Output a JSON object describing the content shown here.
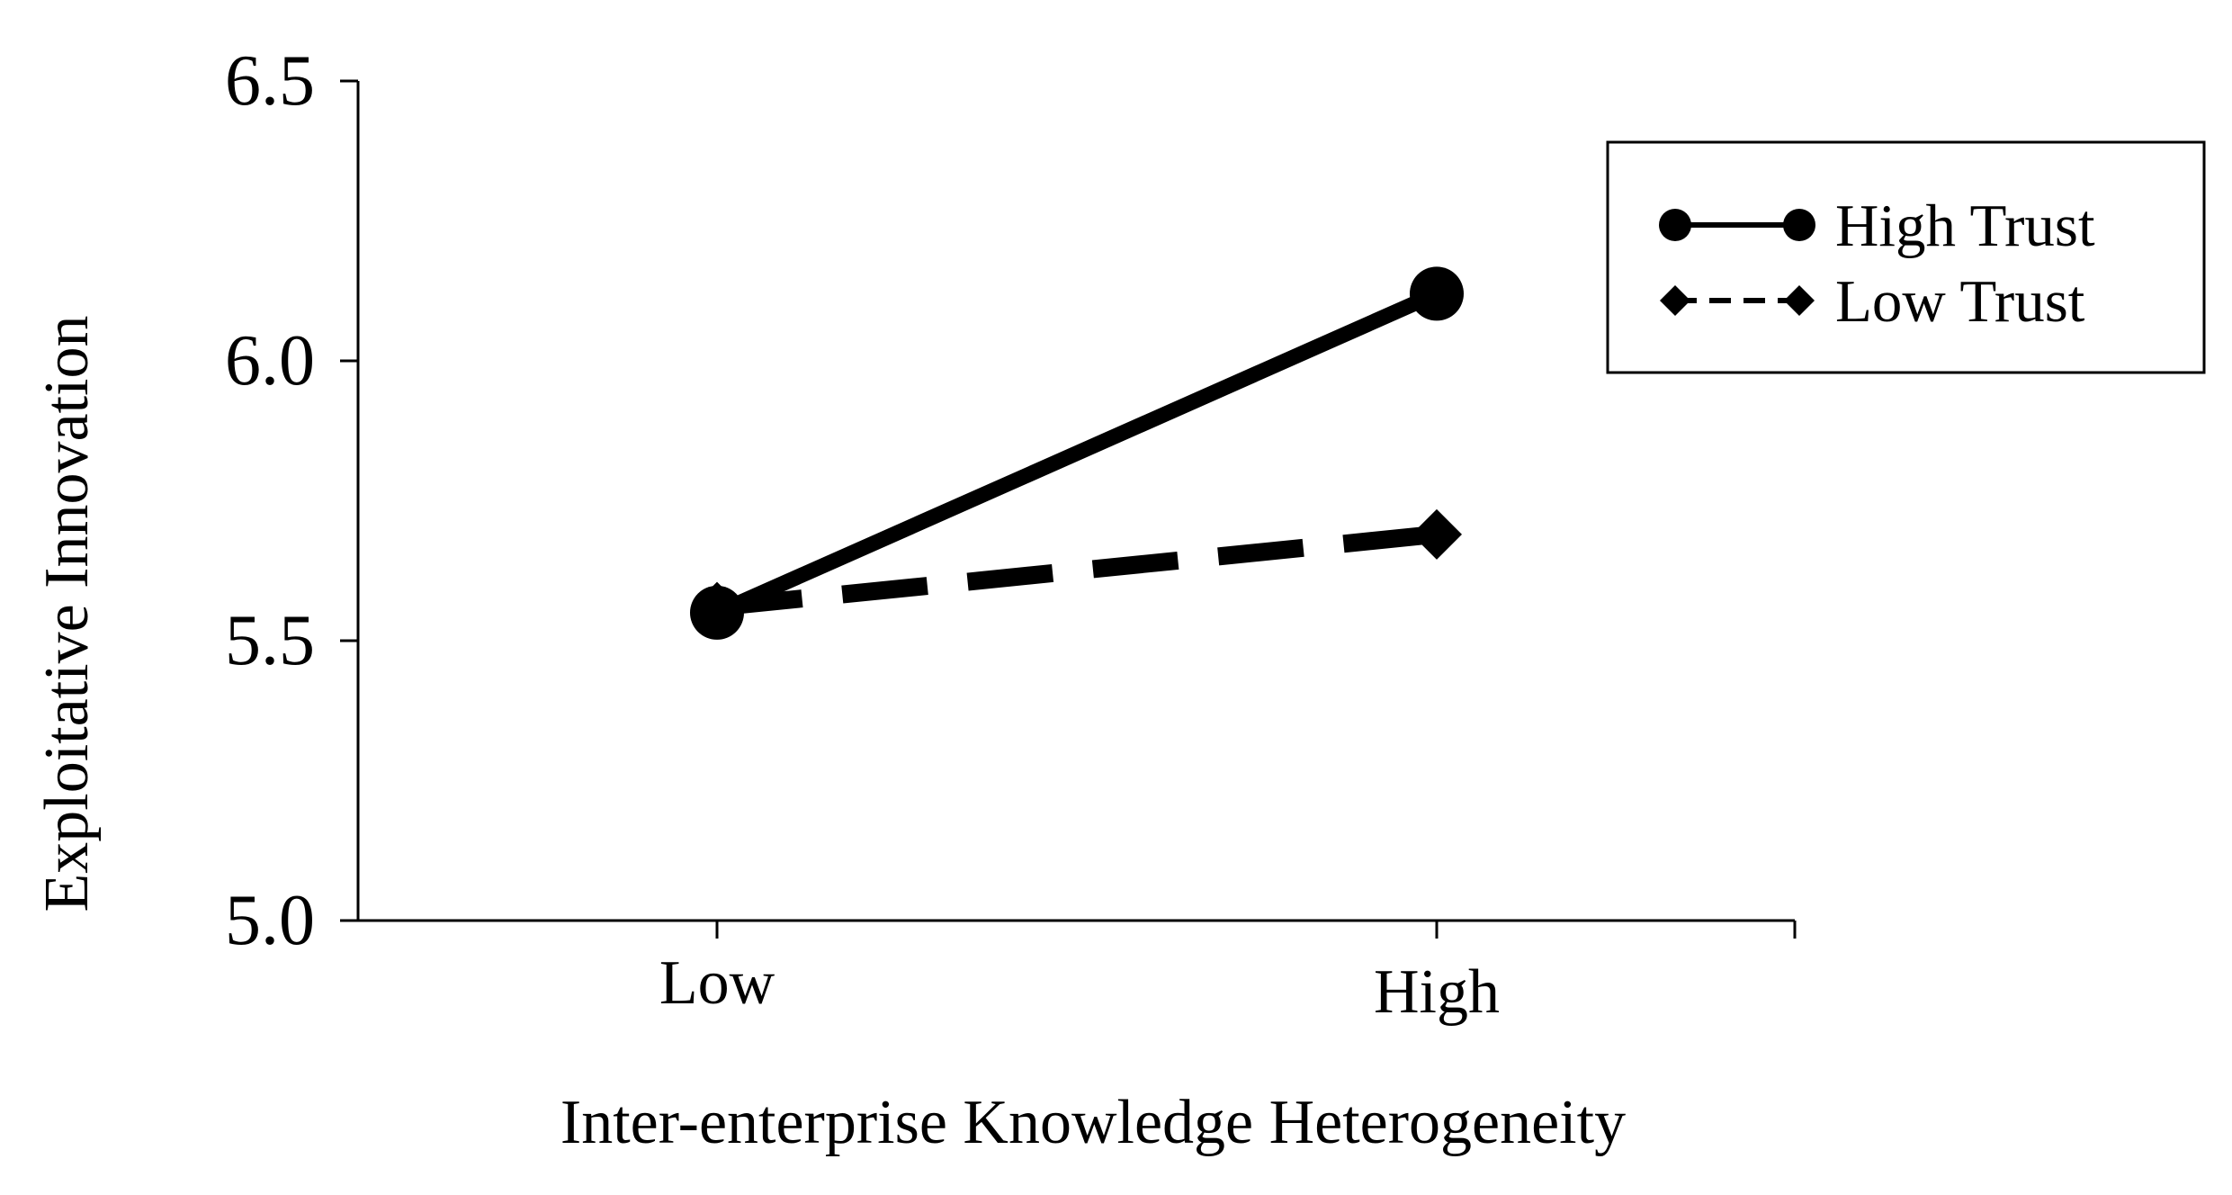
{
  "chart_data": {
    "type": "line",
    "categories": [
      "Low",
      "High"
    ],
    "series": [
      {
        "name": "High Trust",
        "values": [
          5.55,
          6.12
        ],
        "line_style": "solid",
        "marker": "circle"
      },
      {
        "name": "Low Trust",
        "values": [
          5.56,
          5.69
        ],
        "line_style": "dashed",
        "marker": "diamond"
      }
    ],
    "title": "",
    "xlabel": "Inter-enterprise Knowledge Heterogeneity",
    "ylabel": "Exploitative Innovation",
    "ylim": [
      5.0,
      6.5
    ],
    "yticks": [
      "5.0",
      "5.5",
      "6.0",
      "6.5"
    ],
    "grid": false,
    "legend_position": "top-right",
    "colors": {
      "line": "#000000",
      "background": "#ffffff"
    }
  }
}
